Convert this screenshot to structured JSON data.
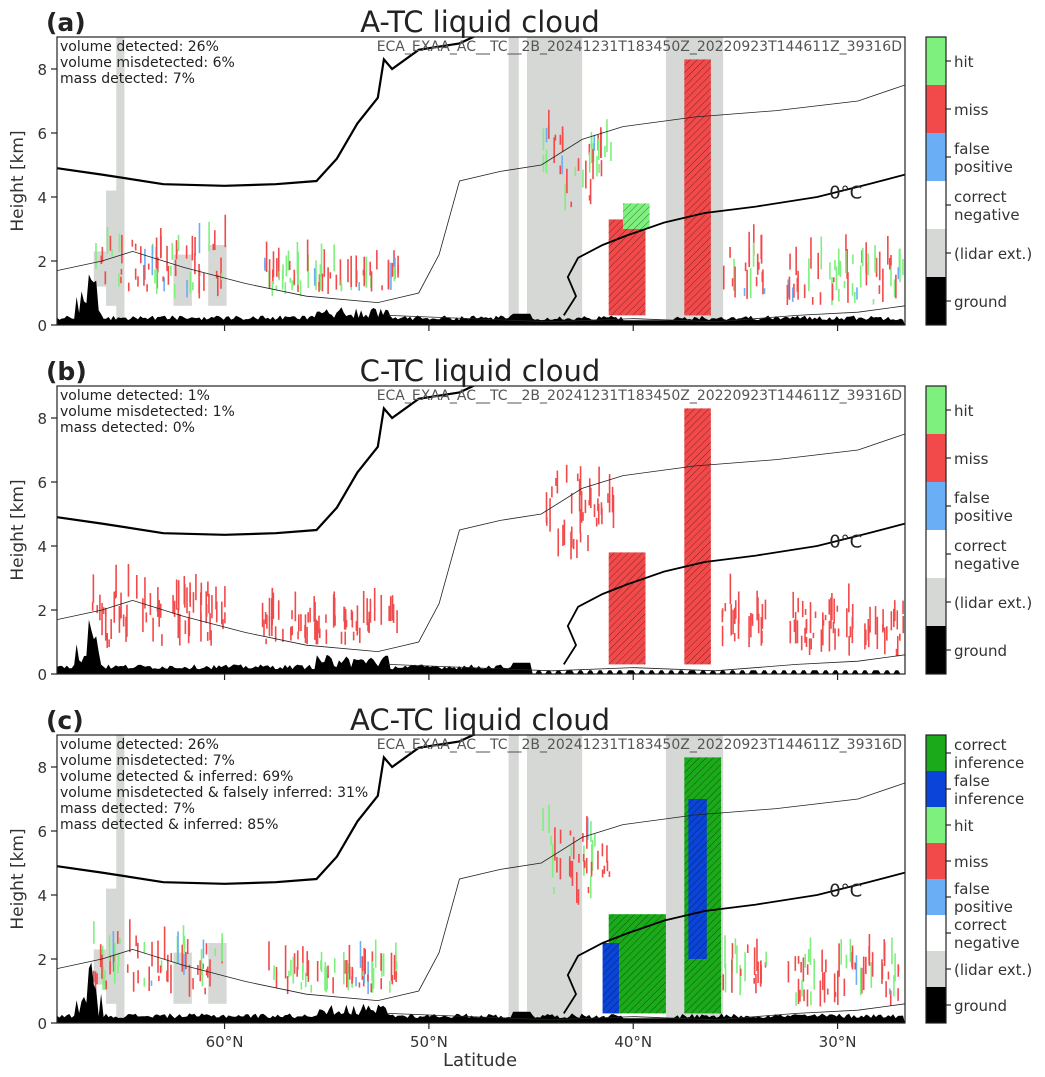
{
  "figure": {
    "xlabel": "Latitude",
    "x_ticks": [
      {
        "value": 60,
        "label": "60$^\\circ$N"
      },
      {
        "value": 50,
        "label": "50$^\\circ$N"
      },
      {
        "value": 40,
        "label": "40$^\\circ$N"
      },
      {
        "value": 30,
        "label": "30$^\\circ$N"
      }
    ],
    "x_tick_text": [
      "60°N",
      "50°N",
      "40°N",
      "30°N"
    ],
    "orbit_id": "ECA_EXAA_AC__TC__2B_20241231T183450Z_20220923T144611Z_39316D",
    "isotherm_label": "0°C"
  },
  "chart_data": [
    {
      "type": "heatmap",
      "panel_letter": "(a)",
      "title": "A-TC liquid cloud",
      "ylabel": "Height [km]",
      "ylim": [
        0,
        9
      ],
      "xlim": [
        68.2,
        26.7
      ],
      "x_reversed": true,
      "y_ticks": [
        0,
        2,
        4,
        6,
        8
      ],
      "stats": [
        "volume detected: 26%",
        "volume misdetected: 6%",
        "mass detected: 7%"
      ],
      "legend": [
        {
          "label": "hit",
          "color": "#7ef07e"
        },
        {
          "label": "miss",
          "color": "#f24a4a"
        },
        {
          "label": "false\npositive",
          "color": "#6aaef5"
        },
        {
          "label": "correct\nnegative",
          "color": "#ffffff"
        },
        {
          "label": "(lidar ext.)",
          "color": "#d5d8d4"
        },
        {
          "label": "ground",
          "color": "#000000"
        }
      ],
      "lidar_ext_bands": [
        [
          65.3,
          64.9
        ],
        [
          46.1,
          45.6
        ],
        [
          45.2,
          42.5
        ],
        [
          38.4,
          35.6
        ]
      ],
      "cloud_regions": [
        {
          "class": "miss",
          "lat": [
            41.2,
            39.4
          ],
          "height": [
            0.3,
            3.3
          ]
        },
        {
          "class": "miss",
          "lat": [
            37.5,
            36.2
          ],
          "height": [
            0.3,
            8.3
          ]
        },
        {
          "class": "hit",
          "lat": [
            40.5,
            39.2
          ],
          "height": [
            3.0,
            3.8
          ]
        },
        {
          "class": "hit",
          "lat": [
            24.9,
            26.9
          ],
          "height": [
            0.9,
            2.5
          ]
        }
      ]
    },
    {
      "type": "heatmap",
      "panel_letter": "(b)",
      "title": "C-TC liquid cloud",
      "ylabel": "Height [km]",
      "ylim": [
        0,
        9
      ],
      "xlim": [
        68.2,
        26.7
      ],
      "x_reversed": true,
      "y_ticks": [
        0,
        2,
        4,
        6,
        8
      ],
      "stats": [
        "volume detected: 1%",
        "volume misdetected: 1%",
        "mass detected: 0%"
      ],
      "legend": [
        {
          "label": "hit",
          "color": "#7ef07e"
        },
        {
          "label": "miss",
          "color": "#f24a4a"
        },
        {
          "label": "false\npositive",
          "color": "#6aaef5"
        },
        {
          "label": "correct\nnegative",
          "color": "#ffffff"
        },
        {
          "label": "(lidar ext.)",
          "color": "#d5d8d4"
        },
        {
          "label": "ground",
          "color": "#000000"
        }
      ],
      "lidar_ext_bands": [],
      "cloud_regions": [
        {
          "class": "miss",
          "lat": [
            41.2,
            39.4
          ],
          "height": [
            0.3,
            3.8
          ]
        },
        {
          "class": "miss",
          "lat": [
            37.5,
            36.2
          ],
          "height": [
            0.3,
            8.3
          ]
        }
      ]
    },
    {
      "type": "heatmap",
      "panel_letter": "(c)",
      "title": "AC-TC liquid cloud",
      "ylabel": "Height [km]",
      "ylim": [
        0,
        9
      ],
      "xlim": [
        68.2,
        26.7
      ],
      "x_reversed": true,
      "y_ticks": [
        0,
        2,
        4,
        6,
        8
      ],
      "stats": [
        "volume detected: 26%",
        "volume misdetected: 7%",
        "volume detected & inferred: 69%",
        "volume misdetected & falsely inferred: 31%",
        "mass detected: 7%",
        "mass detected & inferred: 85%"
      ],
      "legend": [
        {
          "label": "correct\ninference",
          "color": "#1aaa1a"
        },
        {
          "label": "false\ninference",
          "color": "#0b44d8"
        },
        {
          "label": "hit",
          "color": "#7ef07e"
        },
        {
          "label": "miss",
          "color": "#f24a4a"
        },
        {
          "label": "false\npositive",
          "color": "#6aaef5"
        },
        {
          "label": "correct\nnegative",
          "color": "#ffffff"
        },
        {
          "label": "(lidar ext.)",
          "color": "#d5d8d4"
        },
        {
          "label": "ground",
          "color": "#000000"
        }
      ],
      "lidar_ext_bands": [
        [
          65.3,
          64.9
        ],
        [
          46.1,
          45.6
        ],
        [
          45.2,
          42.5
        ],
        [
          38.4,
          35.6
        ]
      ],
      "cloud_regions": [
        {
          "class": "correct inference",
          "lat": [
            41.2,
            38.4
          ],
          "height": [
            0.3,
            3.4
          ]
        },
        {
          "class": "false inference",
          "lat": [
            41.5,
            40.7
          ],
          "height": [
            0.3,
            2.5
          ]
        },
        {
          "class": "correct inference",
          "lat": [
            37.5,
            35.7
          ],
          "height": [
            0.3,
            8.3
          ]
        },
        {
          "class": "false inference",
          "lat": [
            37.3,
            36.4
          ],
          "height": [
            2.0,
            7.0
          ]
        }
      ]
    }
  ],
  "colors": {
    "hit": "#7ef07e",
    "miss": "#f24a4a",
    "false_positive": "#6aaef5",
    "lidar_ext": "#d5d8d4",
    "ground": "#000000",
    "correct_inference": "#1aaa1a",
    "false_inference": "#0b44d8"
  }
}
